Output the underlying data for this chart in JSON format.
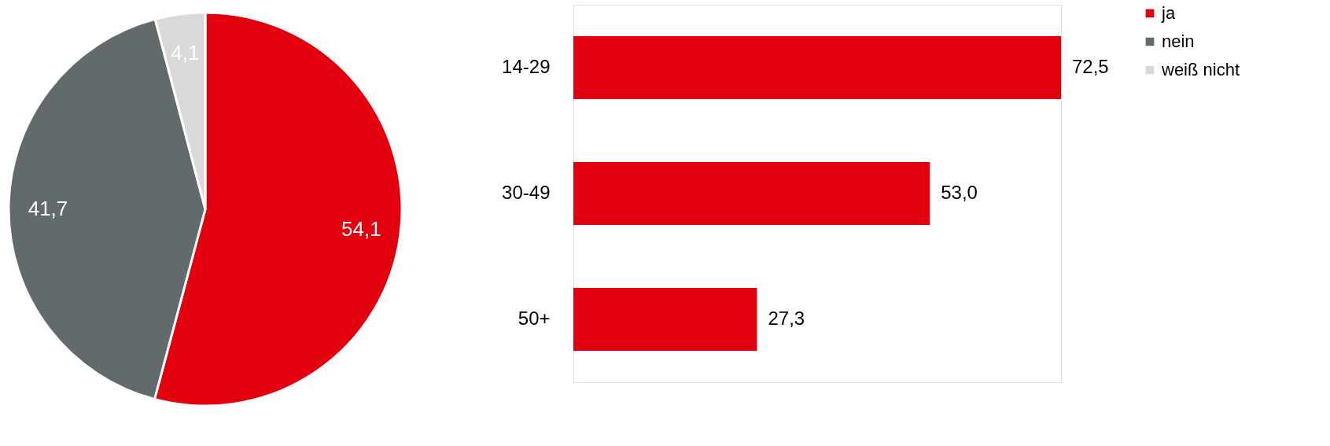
{
  "chart_data": [
    {
      "type": "pie",
      "categories": [
        "ja",
        "nein",
        "weiß nicht"
      ],
      "values": [
        54.1,
        41.7,
        4.1
      ],
      "colors": [
        "#e2000f",
        "#636a6c",
        "#d9d9d9"
      ],
      "value_labels": [
        "54,1",
        "41,7",
        "4,1"
      ],
      "legend": "right"
    },
    {
      "type": "bar",
      "orientation": "horizontal",
      "categories": [
        "14-29",
        "30-49",
        "50+"
      ],
      "values": [
        72.5,
        53.0,
        27.3
      ],
      "color": "#e2000f",
      "value_labels": [
        "72,5",
        "53,0",
        "27,3"
      ]
    }
  ]
}
